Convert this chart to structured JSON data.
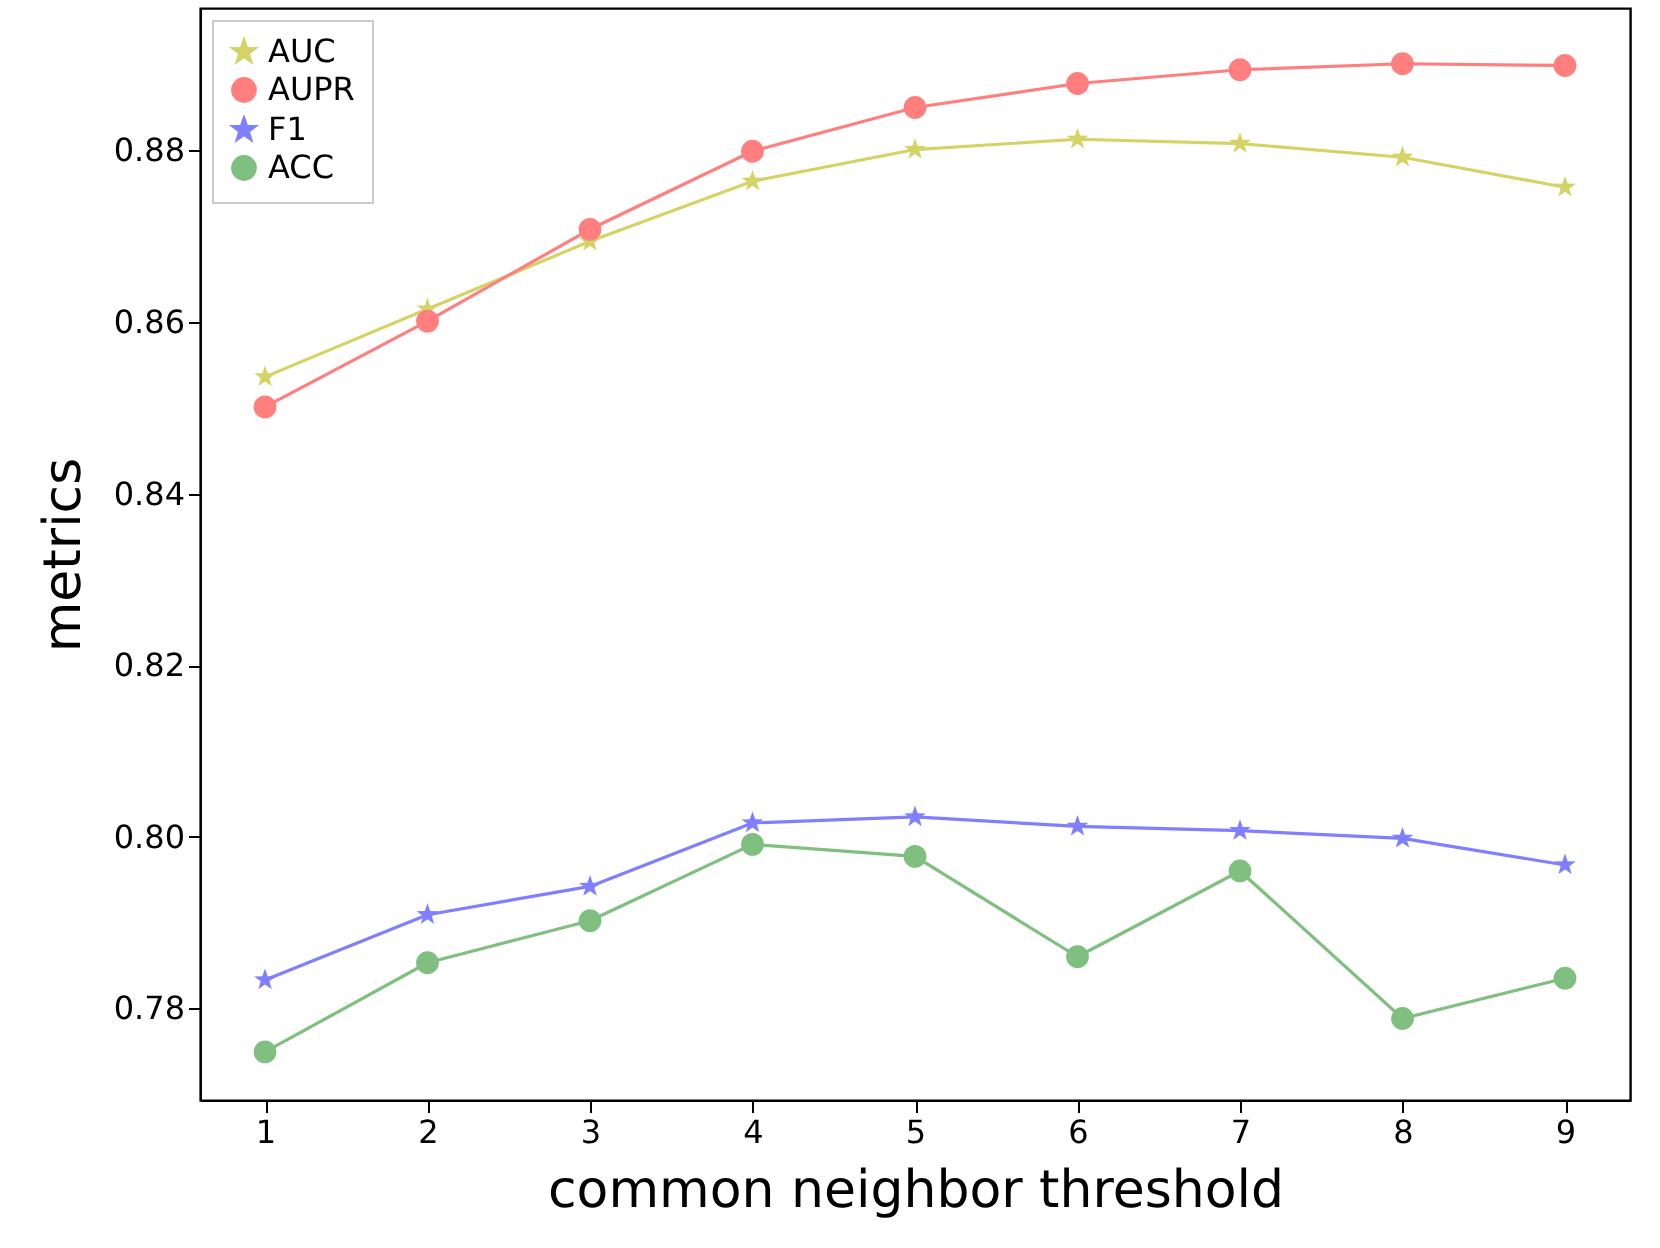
{
  "chart_data": {
    "type": "line",
    "xlabel": "common neighbor threshold",
    "ylabel": "metrics",
    "x": [
      1,
      2,
      3,
      4,
      5,
      6,
      7,
      8,
      9
    ],
    "series": [
      {
        "name": "AUC",
        "color": "#d4d466",
        "marker": "star",
        "values": [
          0.8536,
          0.8615,
          0.8694,
          0.8764,
          0.8801,
          0.8813,
          0.8808,
          0.8792,
          0.8757
        ]
      },
      {
        "name": "AUPR",
        "color": "#ff7f7f",
        "marker": "circle",
        "values": [
          0.8501,
          0.8601,
          0.8708,
          0.8799,
          0.885,
          0.8878,
          0.8894,
          0.8901,
          0.8899
        ]
      },
      {
        "name": "F1",
        "color": "#7f7fff",
        "marker": "star",
        "values": [
          0.7833,
          0.7909,
          0.7942,
          0.8016,
          0.8023,
          0.8012,
          0.8007,
          0.7998,
          0.7967
        ]
      },
      {
        "name": "ACC",
        "color": "#7fbf7f",
        "marker": "circle",
        "values": [
          0.7749,
          0.7853,
          0.7902,
          0.7991,
          0.7977,
          0.786,
          0.796,
          0.7788,
          0.7835
        ]
      }
    ],
    "xlim": [
      0.6,
      9.4
    ],
    "xticks": [
      1,
      2,
      3,
      4,
      5,
      6,
      7,
      8,
      9
    ],
    "ylim": [
      0.7693,
      0.8966
    ],
    "yticks": [
      0.78,
      {
        "value": 0.8,
        "label": "0.80"
      },
      0.82,
      0.84,
      0.86,
      0.88
    ],
    "grid": false,
    "legend": "top left",
    "line_style": "solid"
  }
}
